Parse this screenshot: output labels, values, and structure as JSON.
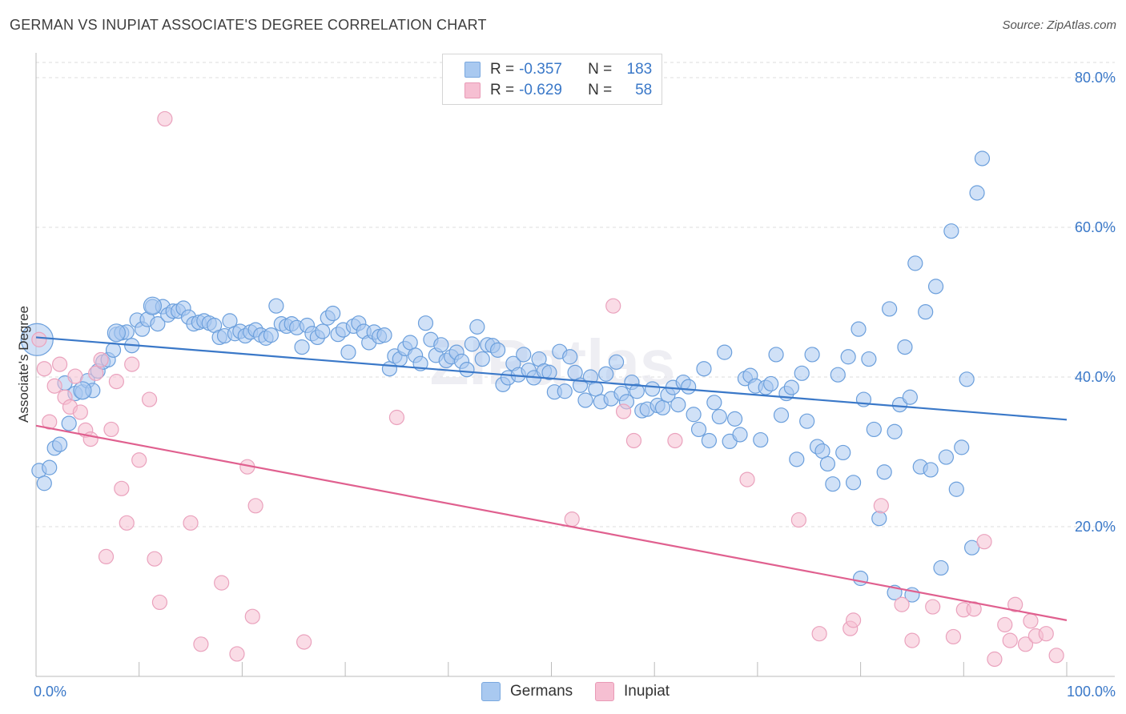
{
  "title": "GERMAN VS INUPIAT ASSOCIATE'S DEGREE CORRELATION CHART",
  "source": "Source: ZipAtlas.com",
  "watermark": "ZIPatlas",
  "legend": [
    {
      "r_label": "R =",
      "r_value": "-0.357",
      "n_label": "N =",
      "n_value": "183",
      "color": "#a9c9f0",
      "border": "#7aa8df"
    },
    {
      "r_label": "R =",
      "r_value": "-0.629",
      "n_label": "N =",
      "n_value": "58",
      "color": "#f6bfd2",
      "border": "#e99ab6"
    }
  ],
  "bottom_legend": [
    {
      "label": "Germans",
      "color": "#a9c9f0",
      "border": "#7aa8df"
    },
    {
      "label": "Inupiat",
      "color": "#f6bfd2",
      "border": "#e99ab6"
    }
  ],
  "chart_data": {
    "type": "scatter",
    "ylabel": "Associate's Degree",
    "x_tick_labels": [
      "0.0%",
      "100.0%"
    ],
    "y_tick_labels": [
      "20.0%",
      "40.0%",
      "60.0%",
      "80.0%"
    ],
    "xlim": [
      0,
      100
    ],
    "ylim": [
      0,
      80
    ],
    "grid": true,
    "series": [
      {
        "name": "Germans",
        "color": "#3a78c8",
        "fill": "#a9c9f0",
        "trend": {
          "x": [
            0,
            100
          ],
          "y": [
            45.3,
            34.3
          ]
        },
        "points": [
          [
            0.3,
            27.5
          ],
          [
            0.8,
            25.8
          ],
          [
            1.3,
            27.9
          ],
          [
            1.8,
            30.5
          ],
          [
            2.3,
            31.0
          ],
          [
            2.8,
            39.2
          ],
          [
            3.2,
            33.8
          ],
          [
            3.8,
            37.8
          ],
          [
            4.5,
            38.0
          ],
          [
            5.0,
            39.5
          ],
          [
            5.5,
            38.2
          ],
          [
            6.0,
            40.8
          ],
          [
            6.5,
            42.0
          ],
          [
            7.0,
            42.3
          ],
          [
            7.5,
            43.6
          ],
          [
            7.8,
            45.7
          ],
          [
            8.3,
            45.9
          ],
          [
            8.8,
            46.0
          ],
          [
            9.3,
            44.2
          ],
          [
            9.8,
            47.6
          ],
          [
            10.3,
            46.4
          ],
          [
            10.8,
            47.7
          ],
          [
            11.3,
            49.4
          ],
          [
            11.8,
            47.1
          ],
          [
            12.3,
            49.4
          ],
          [
            12.8,
            48.3
          ],
          [
            13.3,
            48.8
          ],
          [
            13.8,
            48.8
          ],
          [
            14.3,
            49.2
          ],
          [
            14.8,
            48.0
          ],
          [
            15.3,
            47.1
          ],
          [
            15.8,
            47.3
          ],
          [
            16.3,
            47.5
          ],
          [
            16.8,
            47.2
          ],
          [
            17.3,
            46.9
          ],
          [
            17.8,
            45.3
          ],
          [
            18.3,
            45.5
          ],
          [
            18.8,
            47.5
          ],
          [
            19.3,
            45.8
          ],
          [
            19.8,
            46.1
          ],
          [
            20.3,
            45.5
          ],
          [
            20.8,
            46.0
          ],
          [
            21.3,
            46.3
          ],
          [
            21.8,
            45.6
          ],
          [
            22.3,
            45.2
          ],
          [
            22.8,
            45.6
          ],
          [
            23.3,
            49.5
          ],
          [
            23.8,
            47.1
          ],
          [
            24.3,
            46.8
          ],
          [
            24.8,
            47.1
          ],
          [
            25.3,
            46.6
          ],
          [
            25.8,
            44.0
          ],
          [
            26.3,
            46.9
          ],
          [
            26.8,
            45.8
          ],
          [
            27.3,
            45.3
          ],
          [
            27.8,
            46.1
          ],
          [
            28.3,
            47.9
          ],
          [
            28.8,
            48.5
          ],
          [
            29.3,
            45.7
          ],
          [
            29.8,
            46.3
          ],
          [
            30.3,
            43.3
          ],
          [
            30.8,
            46.8
          ],
          [
            31.3,
            47.2
          ],
          [
            31.8,
            46.1
          ],
          [
            32.3,
            44.6
          ],
          [
            32.8,
            46.0
          ],
          [
            33.3,
            45.4
          ],
          [
            33.8,
            45.6
          ],
          [
            34.3,
            41.1
          ],
          [
            34.8,
            42.8
          ],
          [
            35.3,
            42.4
          ],
          [
            35.8,
            43.8
          ],
          [
            36.3,
            44.6
          ],
          [
            36.8,
            42.9
          ],
          [
            37.3,
            41.8
          ],
          [
            37.8,
            47.2
          ],
          [
            38.3,
            45.0
          ],
          [
            38.8,
            42.9
          ],
          [
            39.3,
            44.3
          ],
          [
            39.8,
            42.2
          ],
          [
            40.3,
            42.7
          ],
          [
            40.8,
            43.3
          ],
          [
            41.3,
            42.1
          ],
          [
            41.8,
            41.0
          ],
          [
            42.3,
            44.4
          ],
          [
            42.8,
            46.7
          ],
          [
            43.3,
            42.4
          ],
          [
            43.8,
            44.3
          ],
          [
            44.3,
            44.2
          ],
          [
            44.8,
            43.6
          ],
          [
            45.3,
            39.0
          ],
          [
            45.8,
            39.9
          ],
          [
            46.3,
            41.8
          ],
          [
            46.8,
            40.3
          ],
          [
            47.3,
            43.0
          ],
          [
            47.8,
            40.9
          ],
          [
            48.3,
            39.9
          ],
          [
            48.8,
            42.4
          ],
          [
            49.3,
            40.8
          ],
          [
            49.8,
            40.6
          ],
          [
            50.3,
            38.0
          ],
          [
            50.8,
            43.4
          ],
          [
            51.3,
            38.1
          ],
          [
            51.8,
            42.7
          ],
          [
            52.3,
            40.6
          ],
          [
            52.8,
            38.9
          ],
          [
            53.3,
            36.9
          ],
          [
            53.8,
            40.0
          ],
          [
            54.3,
            38.4
          ],
          [
            54.8,
            36.7
          ],
          [
            55.3,
            40.4
          ],
          [
            55.8,
            37.1
          ],
          [
            56.3,
            42.0
          ],
          [
            56.8,
            37.8
          ],
          [
            57.3,
            36.7
          ],
          [
            57.8,
            39.3
          ],
          [
            58.3,
            38.1
          ],
          [
            58.8,
            35.5
          ],
          [
            59.3,
            35.7
          ],
          [
            59.8,
            38.4
          ],
          [
            60.3,
            36.2
          ],
          [
            60.8,
            35.9
          ],
          [
            61.3,
            37.6
          ],
          [
            61.8,
            38.6
          ],
          [
            62.3,
            36.3
          ],
          [
            62.8,
            39.3
          ],
          [
            63.3,
            38.7
          ],
          [
            63.8,
            35.0
          ],
          [
            64.3,
            33.0
          ],
          [
            64.8,
            41.1
          ],
          [
            65.3,
            31.5
          ],
          [
            65.8,
            36.6
          ],
          [
            66.3,
            34.7
          ],
          [
            66.8,
            43.3
          ],
          [
            67.3,
            31.4
          ],
          [
            67.8,
            34.4
          ],
          [
            68.3,
            32.3
          ],
          [
            68.8,
            39.8
          ],
          [
            69.3,
            40.2
          ],
          [
            69.8,
            38.8
          ],
          [
            70.3,
            31.6
          ],
          [
            70.8,
            38.6
          ],
          [
            71.3,
            39.1
          ],
          [
            71.8,
            43.0
          ],
          [
            72.3,
            34.9
          ],
          [
            72.8,
            37.8
          ],
          [
            73.3,
            38.6
          ],
          [
            73.8,
            29.0
          ],
          [
            74.3,
            40.5
          ],
          [
            74.8,
            34.1
          ],
          [
            75.3,
            43.0
          ],
          [
            75.8,
            30.7
          ],
          [
            76.3,
            30.1
          ],
          [
            76.8,
            28.4
          ],
          [
            77.3,
            25.7
          ],
          [
            77.8,
            40.3
          ],
          [
            78.3,
            29.9
          ],
          [
            78.8,
            42.7
          ],
          [
            79.3,
            25.9
          ],
          [
            79.8,
            46.4
          ],
          [
            80.3,
            37.0
          ],
          [
            80.8,
            42.4
          ],
          [
            81.3,
            33.0
          ],
          [
            81.8,
            21.1
          ],
          [
            82.3,
            27.3
          ],
          [
            82.8,
            49.1
          ],
          [
            83.3,
            32.7
          ],
          [
            83.8,
            36.3
          ],
          [
            84.3,
            44.0
          ],
          [
            84.8,
            37.3
          ],
          [
            85.3,
            55.2
          ],
          [
            85.8,
            28.0
          ],
          [
            86.3,
            48.7
          ],
          [
            86.8,
            27.6
          ],
          [
            87.3,
            52.1
          ],
          [
            87.8,
            14.5
          ],
          [
            88.3,
            29.3
          ],
          [
            88.8,
            59.5
          ],
          [
            89.3,
            25.0
          ],
          [
            89.8,
            30.6
          ],
          [
            90.3,
            39.7
          ],
          [
            90.8,
            17.2
          ],
          [
            91.3,
            64.6
          ],
          [
            91.8,
            69.2
          ],
          [
            80.0,
            13.1
          ],
          [
            83.3,
            11.2
          ],
          [
            85.0,
            10.9
          ]
        ],
        "large_points": [
          [
            0.1,
            45.0
          ],
          [
            11.3,
            49.5
          ],
          [
            7.8,
            45.9
          ],
          [
            4.5,
            38.2
          ]
        ]
      },
      {
        "name": "Inupiat",
        "color": "#e0608f",
        "fill": "#f6bfd2",
        "trend": {
          "x": [
            0,
            100
          ],
          "y": [
            33.5,
            7.5
          ]
        },
        "points": [
          [
            0.3,
            45.0
          ],
          [
            0.8,
            41.1
          ],
          [
            1.3,
            34.0
          ],
          [
            1.8,
            38.8
          ],
          [
            2.3,
            41.7
          ],
          [
            2.8,
            37.3
          ],
          [
            3.3,
            36.0
          ],
          [
            3.8,
            40.1
          ],
          [
            4.3,
            35.3
          ],
          [
            4.8,
            32.9
          ],
          [
            5.3,
            31.7
          ],
          [
            5.8,
            40.5
          ],
          [
            6.3,
            42.3
          ],
          [
            6.8,
            16.0
          ],
          [
            7.3,
            33.0
          ],
          [
            7.8,
            39.4
          ],
          [
            8.3,
            25.1
          ],
          [
            8.8,
            20.5
          ],
          [
            9.3,
            41.7
          ],
          [
            10.0,
            28.9
          ],
          [
            11.0,
            37.0
          ],
          [
            11.5,
            15.7
          ],
          [
            12.0,
            9.9
          ],
          [
            12.5,
            74.5
          ],
          [
            15.0,
            20.5
          ],
          [
            16.0,
            4.3
          ],
          [
            18.0,
            12.5
          ],
          [
            19.5,
            3.0
          ],
          [
            20.5,
            28.0
          ],
          [
            21.0,
            8.0
          ],
          [
            21.3,
            22.8
          ],
          [
            26.0,
            4.6
          ],
          [
            35.0,
            34.6
          ],
          [
            52.0,
            21.0
          ],
          [
            56.0,
            49.5
          ],
          [
            57.0,
            35.4
          ],
          [
            58.0,
            31.5
          ],
          [
            62.0,
            31.5
          ],
          [
            69.0,
            26.3
          ],
          [
            74.0,
            20.9
          ],
          [
            76.0,
            5.7
          ],
          [
            79.0,
            6.4
          ],
          [
            79.3,
            7.5
          ],
          [
            82.0,
            22.8
          ],
          [
            84.0,
            9.6
          ],
          [
            85.0,
            4.8
          ],
          [
            87.0,
            9.3
          ],
          [
            89.0,
            5.3
          ],
          [
            90.0,
            8.9
          ],
          [
            91.0,
            9.0
          ],
          [
            92.0,
            18.0
          ],
          [
            93.0,
            2.3
          ],
          [
            94.0,
            6.9
          ],
          [
            94.5,
            4.8
          ],
          [
            95.0,
            9.6
          ],
          [
            96.0,
            4.3
          ],
          [
            96.5,
            7.4
          ],
          [
            97.0,
            5.4
          ],
          [
            98.0,
            5.7
          ],
          [
            99.0,
            2.8
          ]
        ],
        "large_points": []
      }
    ]
  }
}
